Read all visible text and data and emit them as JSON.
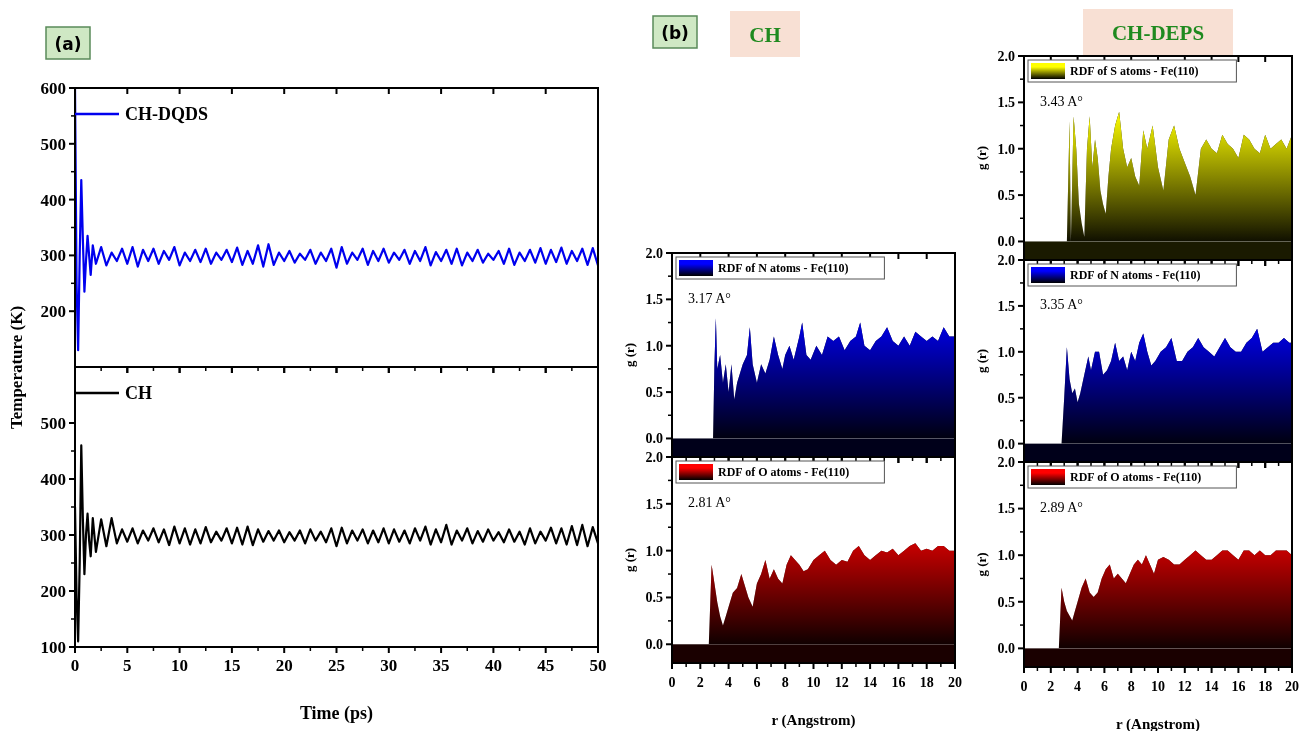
{
  "chart_data": [
    {
      "type": "line",
      "ylabel": "Temperature (K)",
      "annotations": [
        "(a)"
      ],
      "xlim": [
        0,
        50
      ],
      "xticks": [
        0,
        5,
        10,
        15,
        20,
        25,
        30,
        35,
        40,
        45,
        50
      ],
      "ylim": [
        100,
        600
      ],
      "yticks": [
        200,
        300,
        400,
        500,
        600
      ],
      "tick_labels": "y",
      "legend": "top left",
      "series": [
        {
          "name": "CH-DQDS",
          "color": "#0000ee",
          "x": [
            0,
            0.15,
            0.3,
            0.45,
            0.6,
            0.75,
            0.9,
            1.05,
            1.2,
            1.35,
            1.5,
            1.7,
            2,
            2.5,
            3,
            3.5,
            4,
            4.5,
            5,
            5.5,
            6,
            6.5,
            7,
            7.5,
            8,
            8.5,
            9,
            9.5,
            10,
            10.5,
            11,
            11.5,
            12,
            12.5,
            13,
            13.5,
            14,
            14.5,
            15,
            15.5,
            16,
            16.5,
            17,
            17.5,
            18,
            18.5,
            19,
            19.5,
            20,
            20.5,
            21,
            21.5,
            22,
            22.5,
            23,
            23.5,
            24,
            24.5,
            25,
            25.5,
            26,
            26.5,
            27,
            27.5,
            28,
            28.5,
            29,
            29.5,
            30,
            30.5,
            31,
            31.5,
            32,
            32.5,
            33,
            33.5,
            34,
            34.5,
            35,
            35.5,
            36,
            36.5,
            37,
            37.5,
            38,
            38.5,
            39,
            39.5,
            40,
            40.5,
            41,
            41.5,
            42,
            42.5,
            43,
            43.5,
            44,
            44.5,
            45,
            45.5,
            46,
            46.5,
            47,
            47.5,
            48,
            48.5,
            49,
            49.5,
            50
          ],
          "values": [
            600,
            250,
            130,
            300,
            435,
            330,
            235,
            290,
            335,
            300,
            265,
            318,
            285,
            315,
            282,
            305,
            290,
            312,
            285,
            315,
            280,
            310,
            290,
            312,
            285,
            308,
            292,
            315,
            282,
            305,
            290,
            310,
            288,
            312,
            285,
            305,
            292,
            310,
            288,
            314,
            283,
            308,
            285,
            318,
            280,
            320,
            283,
            305,
            290,
            308,
            287,
            303,
            292,
            310,
            285,
            305,
            290,
            312,
            278,
            315,
            285,
            305,
            292,
            312,
            283,
            308,
            290,
            312,
            287,
            305,
            292,
            310,
            285,
            308,
            290,
            315,
            282,
            306,
            290,
            310,
            285,
            312,
            282,
            305,
            290,
            310,
            287,
            303,
            292,
            308,
            285,
            312,
            283,
            305,
            290,
            310,
            287,
            313,
            285,
            310,
            288,
            314,
            285,
            308,
            290,
            312,
            283,
            313,
            282
          ]
        }
      ]
    },
    {
      "type": "line",
      "xlabel": "Time (ps)",
      "xlim": [
        0,
        50
      ],
      "xticks": [
        0,
        5,
        10,
        15,
        20,
        25,
        30,
        35,
        40,
        45,
        50
      ],
      "ylim": [
        100,
        600
      ],
      "yticks": [
        100,
        200,
        300,
        400,
        500
      ],
      "legend": "top left",
      "series": [
        {
          "name": "CH",
          "color": "#000000",
          "x": [
            0,
            0.15,
            0.3,
            0.45,
            0.6,
            0.75,
            0.9,
            1.05,
            1.2,
            1.35,
            1.5,
            1.7,
            2,
            2.5,
            3,
            3.5,
            4,
            4.5,
            5,
            5.5,
            6,
            6.5,
            7,
            7.5,
            8,
            8.5,
            9,
            9.5,
            10,
            10.5,
            11,
            11.5,
            12,
            12.5,
            13,
            13.5,
            14,
            14.5,
            15,
            15.5,
            16,
            16.5,
            17,
            17.5,
            18,
            18.5,
            19,
            19.5,
            20,
            20.5,
            21,
            21.5,
            22,
            22.5,
            23,
            23.5,
            24,
            24.5,
            25,
            25.5,
            26,
            26.5,
            27,
            27.5,
            28,
            28.5,
            29,
            29.5,
            30,
            30.5,
            31,
            31.5,
            32,
            32.5,
            33,
            33.5,
            34,
            34.5,
            35,
            35.5,
            36,
            36.5,
            37,
            37.5,
            38,
            38.5,
            39,
            39.5,
            40,
            40.5,
            41,
            41.5,
            42,
            42.5,
            43,
            43.5,
            44,
            44.5,
            45,
            45.5,
            46,
            46.5,
            47,
            47.5,
            48,
            48.5,
            49,
            49.5,
            50
          ],
          "values": [
            350,
            190,
            110,
            250,
            460,
            330,
            230,
            300,
            338,
            290,
            262,
            330,
            270,
            328,
            280,
            330,
            285,
            310,
            288,
            312,
            285,
            308,
            290,
            312,
            287,
            310,
            282,
            315,
            285,
            312,
            283,
            310,
            285,
            314,
            287,
            306,
            290,
            312,
            285,
            313,
            283,
            315,
            282,
            310,
            288,
            307,
            290,
            308,
            287,
            305,
            290,
            308,
            285,
            310,
            290,
            306,
            287,
            312,
            280,
            313,
            285,
            308,
            290,
            310,
            285,
            308,
            287,
            312,
            285,
            310,
            288,
            308,
            285,
            312,
            290,
            315,
            283,
            310,
            287,
            318,
            283,
            308,
            290,
            312,
            285,
            307,
            288,
            310,
            290,
            305,
            287,
            310,
            288,
            306,
            283,
            312,
            285,
            306,
            290,
            313,
            285,
            312,
            283,
            316,
            282,
            318,
            280,
            314,
            285
          ]
        }
      ]
    },
    {
      "type": "area",
      "title": "CH",
      "ylabel": "g (r)",
      "bands": [
        {
          "axis": "y",
          "from": -0.2,
          "to": 0,
          "color": "#00001a"
        }
      ],
      "annotations": [
        "(b)",
        "3.17 A°"
      ],
      "xlim": [
        0,
        20
      ],
      "xticks": [
        0,
        2,
        4,
        6,
        8,
        10,
        12,
        14,
        16,
        18,
        20
      ],
      "ylim": [
        -0.2,
        2.0
      ],
      "yticks": [
        {
          "value": 0,
          "label": "0.0"
        },
        0.5,
        {
          "value": 1,
          "label": "1.0"
        },
        1.5,
        {
          "value": 2,
          "label": "2.0"
        }
      ],
      "tick_labels": "y",
      "legend": "top left",
      "series": [
        {
          "name": "RDF of N atoms - Fe(110)",
          "color": "#0000ff",
          "x": [
            0,
            2.9,
            3.0,
            3.1,
            3.2,
            3.4,
            3.6,
            3.8,
            4.0,
            4.2,
            4.4,
            4.6,
            4.8,
            5.0,
            5.3,
            5.5,
            5.7,
            6.0,
            6.3,
            6.6,
            6.9,
            7.2,
            7.5,
            7.8,
            8.0,
            8.3,
            8.6,
            9.0,
            9.2,
            9.5,
            9.8,
            10.2,
            10.6,
            11.0,
            11.4,
            11.8,
            12.2,
            12.6,
            13.0,
            13.3,
            13.6,
            14.0,
            14.4,
            14.8,
            15.2,
            15.6,
            16.0,
            16.4,
            16.8,
            17.2,
            17.6,
            18.0,
            18.4,
            18.8,
            19.2,
            19.6,
            20.0
          ],
          "values": [
            0,
            0,
            0.8,
            1.3,
            0.75,
            0.9,
            0.6,
            0.8,
            0.5,
            0.8,
            0.42,
            0.6,
            0.7,
            0.8,
            0.9,
            1.2,
            0.8,
            0.6,
            0.8,
            0.7,
            0.85,
            1.1,
            0.9,
            0.75,
            0.9,
            1.0,
            0.85,
            1.1,
            1.25,
            0.9,
            0.85,
            1.0,
            0.9,
            1.1,
            1.05,
            1.1,
            0.95,
            1.05,
            1.1,
            1.25,
            1.0,
            0.95,
            1.05,
            1.1,
            1.2,
            1.05,
            1.0,
            1.1,
            1.0,
            1.15,
            1.1,
            1.05,
            1.1,
            1.05,
            1.2,
            1.1,
            1.1
          ]
        }
      ]
    },
    {
      "type": "area",
      "xlabel": "r (Angstrom)",
      "ylabel": "g (r)",
      "annotations": [
        "2.81 A°"
      ],
      "bands": [
        {
          "axis": "y",
          "from": -0.2,
          "to": 0,
          "color": "#1a0000"
        }
      ],
      "xlim": [
        0,
        20
      ],
      "xticks": [
        0,
        2,
        4,
        6,
        8,
        10,
        12,
        14,
        16,
        18,
        20
      ],
      "ylim": [
        -0.2,
        2.0
      ],
      "yticks": [
        {
          "value": 0,
          "label": "0.0"
        },
        0.5,
        {
          "value": 1,
          "label": "1.0"
        },
        1.5,
        {
          "value": 2,
          "label": "2.0"
        }
      ],
      "legend": "top left",
      "series": [
        {
          "name": "RDF of O atoms - Fe(110)",
          "color": "#ff0000",
          "x": [
            0,
            2.6,
            2.8,
            3.0,
            3.2,
            3.4,
            3.6,
            3.8,
            4.0,
            4.3,
            4.6,
            4.9,
            5.1,
            5.4,
            5.7,
            6.0,
            6.3,
            6.6,
            6.9,
            7.2,
            7.5,
            7.8,
            8.1,
            8.4,
            8.7,
            9.0,
            9.3,
            9.6,
            10.0,
            10.4,
            10.8,
            11.2,
            11.6,
            12.0,
            12.4,
            12.8,
            13.2,
            13.6,
            14.0,
            14.4,
            14.8,
            15.2,
            15.6,
            16.0,
            16.4,
            16.8,
            17.2,
            17.6,
            18.0,
            18.4,
            18.8,
            19.2,
            19.6,
            20.0
          ],
          "values": [
            0,
            0,
            0.85,
            0.65,
            0.45,
            0.3,
            0.2,
            0.3,
            0.4,
            0.55,
            0.6,
            0.75,
            0.65,
            0.5,
            0.4,
            0.65,
            0.75,
            0.9,
            0.7,
            0.8,
            0.7,
            0.65,
            0.85,
            0.95,
            0.9,
            0.85,
            0.78,
            0.8,
            0.9,
            0.95,
            1.0,
            0.9,
            0.85,
            0.9,
            0.88,
            1.0,
            1.05,
            0.95,
            0.9,
            0.95,
            1.0,
            0.98,
            1.02,
            0.95,
            1.0,
            1.05,
            1.08,
            1.0,
            1.02,
            1.0,
            1.05,
            1.05,
            1.0,
            1.0
          ]
        }
      ]
    },
    {
      "type": "area",
      "title": "CH-DEPS",
      "ylabel": "g (r)",
      "annotations": [
        "3.43 A°"
      ],
      "bands": [
        {
          "axis": "y",
          "from": -0.2,
          "to": 0,
          "color": "#1a1a00"
        }
      ],
      "xlim": [
        0,
        20
      ],
      "xticks": [
        0,
        2,
        4,
        6,
        8,
        10,
        12,
        14,
        16,
        18,
        20
      ],
      "ylim": [
        -0.2,
        2.0
      ],
      "yticks": [
        {
          "value": 0,
          "label": "0.0"
        },
        0.5,
        {
          "value": 1,
          "label": "1.0"
        },
        1.5,
        {
          "value": 2,
          "label": "2.0"
        }
      ],
      "tick_labels": "y",
      "legend": "top left",
      "series": [
        {
          "name": "RDF of S atoms - Fe(110)",
          "color": "#ffff00",
          "x": [
            0,
            3.2,
            3.4,
            3.5,
            3.7,
            3.9,
            4.1,
            4.3,
            4.5,
            4.7,
            4.9,
            5.1,
            5.3,
            5.5,
            5.7,
            5.9,
            6.1,
            6.3,
            6.5,
            6.8,
            7.1,
            7.4,
            7.7,
            8.0,
            8.3,
            8.6,
            8.9,
            9.2,
            9.6,
            10.0,
            10.4,
            10.8,
            11.2,
            11.6,
            12.0,
            12.4,
            12.8,
            13.2,
            13.6,
            14.0,
            14.4,
            14.8,
            15.2,
            15.6,
            16.0,
            16.4,
            16.8,
            17.2,
            17.6,
            18.0,
            18.4,
            18.8,
            19.2,
            19.6,
            20.0
          ],
          "values": [
            0,
            0,
            1.3,
            0.0,
            1.35,
            1.0,
            0.4,
            0.2,
            0.05,
            1.0,
            1.35,
            0.8,
            1.1,
            0.9,
            0.55,
            0.4,
            0.3,
            0.7,
            1.0,
            1.25,
            1.4,
            1.0,
            0.8,
            0.9,
            0.7,
            0.6,
            1.2,
            1.0,
            1.25,
            0.8,
            0.55,
            1.1,
            1.25,
            1.0,
            0.85,
            0.7,
            0.5,
            1.0,
            1.1,
            1.0,
            0.95,
            1.15,
            1.05,
            1.0,
            0.9,
            1.15,
            1.1,
            1.0,
            0.95,
            1.15,
            1.0,
            1.05,
            1.1,
            1.0,
            1.15
          ]
        }
      ]
    },
    {
      "type": "area",
      "ylabel": "g (r)",
      "annotations": [
        "3.35 A°"
      ],
      "bands": [
        {
          "axis": "y",
          "from": -0.2,
          "to": 0,
          "color": "#00001a"
        }
      ],
      "xlim": [
        0,
        20
      ],
      "xticks": [
        0,
        2,
        4,
        6,
        8,
        10,
        12,
        14,
        16,
        18,
        20
      ],
      "ylim": [
        -0.2,
        2.0
      ],
      "yticks": [
        {
          "value": 0,
          "label": "0.0"
        },
        0.5,
        {
          "value": 1,
          "label": "1.0"
        },
        1.5,
        {
          "value": 2,
          "label": "2.0"
        }
      ],
      "tick_labels": "y",
      "legend": "top left",
      "series": [
        {
          "name": "RDF of N atoms - Fe(110)",
          "color": "#0000ff",
          "x": [
            0,
            2.8,
            3.0,
            3.2,
            3.4,
            3.6,
            3.8,
            4.0,
            4.2,
            4.5,
            4.8,
            5.0,
            5.3,
            5.6,
            5.9,
            6.2,
            6.5,
            6.8,
            7.1,
            7.4,
            7.7,
            8.0,
            8.3,
            8.6,
            8.9,
            9.2,
            9.5,
            9.8,
            10.2,
            10.6,
            11.0,
            11.4,
            11.8,
            12.2,
            12.6,
            13.0,
            13.4,
            13.8,
            14.2,
            14.6,
            15.0,
            15.4,
            15.8,
            16.2,
            16.6,
            17.0,
            17.4,
            17.8,
            18.2,
            18.6,
            19.0,
            19.4,
            19.8,
            20.0
          ],
          "values": [
            0,
            0,
            0.5,
            1.05,
            0.7,
            0.55,
            0.6,
            0.45,
            0.55,
            0.75,
            0.95,
            0.8,
            1.0,
            1.0,
            0.75,
            0.8,
            0.9,
            1.1,
            0.9,
            0.95,
            0.8,
            1.0,
            0.9,
            1.1,
            1.2,
            1.0,
            0.85,
            0.9,
            1.0,
            1.05,
            1.15,
            0.9,
            0.9,
            1.0,
            1.05,
            1.15,
            1.05,
            1.0,
            0.95,
            1.05,
            1.15,
            1.05,
            1.0,
            1.0,
            1.1,
            1.15,
            1.25,
            1.0,
            1.05,
            1.1,
            1.1,
            1.15,
            1.1,
            1.1
          ]
        }
      ]
    },
    {
      "type": "area",
      "xlabel": "r (Angstrom)",
      "ylabel": "g (r)",
      "annotations": [
        "2.89 A°"
      ],
      "bands": [
        {
          "axis": "y",
          "from": -0.2,
          "to": 0,
          "color": "#1a0000"
        }
      ],
      "xlim": [
        0,
        20
      ],
      "xticks": [
        0,
        2,
        4,
        6,
        8,
        10,
        12,
        14,
        16,
        18,
        20
      ],
      "ylim": [
        -0.2,
        2.0
      ],
      "yticks": [
        {
          "value": 0,
          "label": "0.0"
        },
        0.5,
        {
          "value": 1,
          "label": "1.0"
        },
        1.5,
        {
          "value": 2,
          "label": "2.0"
        }
      ],
      "legend": "top left",
      "series": [
        {
          "name": "RDF of O atoms - Fe(110)",
          "color": "#ff0000",
          "x": [
            0,
            2.6,
            2.8,
            3.0,
            3.2,
            3.4,
            3.6,
            3.8,
            4.0,
            4.3,
            4.6,
            4.9,
            5.2,
            5.5,
            5.8,
            6.1,
            6.4,
            6.7,
            7.0,
            7.3,
            7.6,
            7.9,
            8.2,
            8.5,
            8.8,
            9.1,
            9.4,
            9.7,
            10.0,
            10.4,
            10.8,
            11.2,
            11.6,
            12.0,
            12.4,
            12.8,
            13.2,
            13.6,
            14.0,
            14.4,
            14.8,
            15.2,
            15.6,
            16.0,
            16.4,
            16.8,
            17.2,
            17.6,
            18.0,
            18.4,
            18.8,
            19.2,
            19.6,
            20.0
          ],
          "values": [
            0,
            0,
            0.65,
            0.5,
            0.4,
            0.35,
            0.3,
            0.4,
            0.5,
            0.65,
            0.75,
            0.6,
            0.55,
            0.6,
            0.75,
            0.85,
            0.9,
            0.75,
            0.8,
            0.75,
            0.7,
            0.8,
            0.9,
            0.95,
            0.9,
            1.0,
            0.9,
            0.8,
            0.95,
            0.98,
            0.95,
            0.9,
            0.9,
            0.95,
            1.0,
            1.05,
            1.0,
            0.95,
            0.95,
            1.0,
            1.05,
            1.05,
            1.0,
            0.95,
            1.05,
            1.05,
            1.0,
            1.05,
            1.0,
            1.0,
            1.05,
            1.05,
            1.05,
            1.0
          ]
        }
      ]
    }
  ]
}
